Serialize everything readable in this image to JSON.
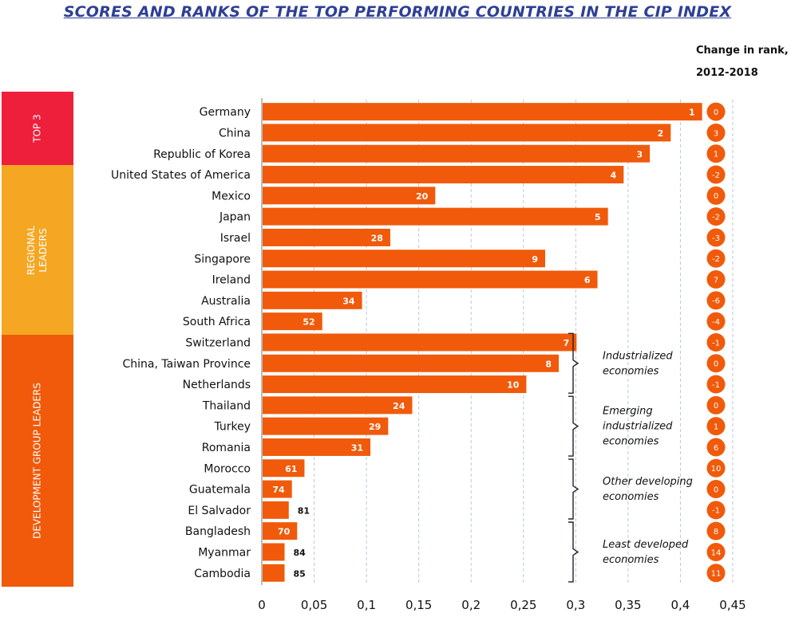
{
  "title": "SCORES AND RANKS OF THE TOP PERFORMING COUNTRIES IN THE CIP INDEX",
  "change_header": [
    "Change in rank,",
    "2012-2018"
  ],
  "colors": {
    "bar": "#f05a0a",
    "title": "#2e3f94",
    "top3": "#ee1f3b",
    "regional": "#f5a623",
    "development": "#f05a0a"
  },
  "groups": [
    {
      "label": "TOP 3",
      "color": "#ee1f3b"
    },
    {
      "label": "REGIONAL\nLEADERS",
      "color": "#f5a623"
    },
    {
      "label": "DEVELOPMENT GROUP LEADERS",
      "color": "#f05a0a"
    }
  ],
  "brackets": [
    {
      "label": "Industrialized\neconomies"
    },
    {
      "label": "Emerging\nindustrialized\neconomies"
    },
    {
      "label": "Other developing\neconomies"
    },
    {
      "label": "Least developed\neconomies"
    }
  ],
  "chart_data": {
    "type": "bar",
    "orientation": "horizontal",
    "xlim": [
      0,
      0.45
    ],
    "x_ticks": [
      "0",
      "0,05",
      "0,1",
      "0,15",
      "0,2",
      "0,25",
      "0,3",
      "0,35",
      "0,4",
      "0,45"
    ],
    "grid": "vertical dashed",
    "categories": [
      "Germany",
      "China",
      "Republic of Korea",
      "United States of America",
      "Mexico",
      "Japan",
      "Israel",
      "Singapore",
      "Ireland",
      "Australia",
      "South Africa",
      "Switzerland",
      "China, Taiwan Province",
      "Netherlands",
      "Thailand",
      "Turkey",
      "Romania",
      "Morocco",
      "Guatemala",
      "El Salvador",
      "Bangladesh",
      "Myanmar",
      "Cambodia"
    ],
    "values": [
      0.42,
      0.39,
      0.37,
      0.345,
      0.165,
      0.33,
      0.122,
      0.27,
      0.32,
      0.095,
      0.057,
      0.3,
      0.283,
      0.252,
      0.143,
      0.12,
      0.103,
      0.04,
      0.028,
      0.025,
      0.033,
      0.021,
      0.021
    ],
    "rank_labels": [
      "1",
      "2",
      "3",
      "4",
      "20",
      "5",
      "28",
      "9",
      "6",
      "34",
      "52",
      "7",
      "8",
      "10",
      "24",
      "29",
      "31",
      "61",
      "74",
      "81",
      "70",
      "84",
      "85"
    ],
    "rank_change": [
      "0",
      "3",
      "1",
      "-2",
      "0",
      "-2",
      "-3",
      "-2",
      "7",
      "-6",
      "-4",
      "-1",
      "0",
      "-1",
      "0",
      "1",
      "6",
      "10",
      "0",
      "-1",
      "8",
      "14",
      "11"
    ]
  }
}
